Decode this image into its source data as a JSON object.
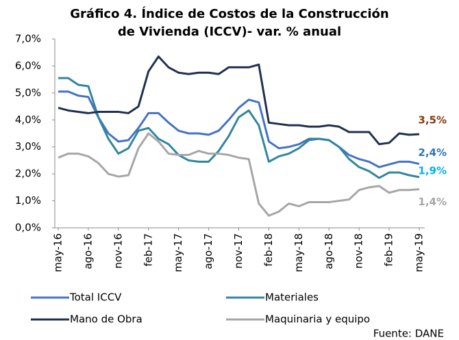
{
  "chart_data": {
    "type": "line",
    "title": "Gráfico 4. Índice de Costos de la Construcción de Vivienda (ICCV)- var. % anual",
    "source": "Fuente: DANE",
    "categories": [
      "may-16",
      null,
      null,
      "ago-16",
      null,
      null,
      "nov-16",
      null,
      null,
      "feb-17",
      null,
      null,
      "may-17",
      null,
      null,
      "ago-17",
      null,
      null,
      "nov-17",
      null,
      null,
      "feb-18",
      null,
      null,
      "may-18",
      null,
      null,
      "ago-18",
      null,
      null,
      "nov-18",
      null,
      null,
      "feb-19",
      null,
      null,
      "may-19"
    ],
    "ylim": [
      0,
      7
    ],
    "yticks": [
      {
        "value": 0,
        "label": "0,0%"
      },
      {
        "value": 1,
        "label": "1,0%"
      },
      {
        "value": 2,
        "label": "2,0%"
      },
      {
        "value": 3,
        "label": "3,0%"
      },
      {
        "value": 4,
        "label": "4,0%"
      },
      {
        "value": 5,
        "label": "5,0%"
      },
      {
        "value": 6,
        "label": "6,0%"
      },
      {
        "value": 7,
        "label": "7,0%"
      }
    ],
    "series": [
      {
        "name": "Total ICCV",
        "color": "#4472c4",
        "label_color": "#2e75b6",
        "values": [
          5.05,
          5.05,
          4.9,
          4.85,
          4.1,
          3.5,
          3.2,
          3.25,
          3.7,
          4.25,
          4.25,
          3.9,
          3.6,
          3.5,
          3.5,
          3.45,
          3.6,
          4.0,
          4.45,
          4.75,
          4.65,
          3.2,
          2.95,
          3.0,
          3.1,
          3.3,
          3.3,
          3.25,
          3.0,
          2.7,
          2.55,
          2.45,
          2.25,
          2.35,
          2.45,
          2.45,
          2.37
        ],
        "value_labels": [
          null,
          null,
          null,
          null,
          null,
          null,
          null,
          null,
          null,
          null,
          null,
          null,
          null,
          null,
          null,
          null,
          null,
          null,
          null,
          null,
          null,
          null,
          null,
          null,
          null,
          null,
          null,
          null,
          null,
          null,
          null,
          null,
          null,
          null,
          null,
          null,
          "2,4%"
        ]
      },
      {
        "name": "Materiales",
        "color": "#31859c",
        "label_color": "#00b0f0",
        "values": [
          5.55,
          5.55,
          5.3,
          5.25,
          4.1,
          3.3,
          2.75,
          2.95,
          3.6,
          3.7,
          3.3,
          3.1,
          2.7,
          2.5,
          2.45,
          2.45,
          2.85,
          3.4,
          4.1,
          4.35,
          3.8,
          2.45,
          2.65,
          2.75,
          2.95,
          3.25,
          3.3,
          3.25,
          3.0,
          2.55,
          2.25,
          2.1,
          1.85,
          2.05,
          2.05,
          1.95,
          1.88
        ],
        "value_labels": [
          null,
          null,
          null,
          null,
          null,
          null,
          null,
          null,
          null,
          null,
          null,
          null,
          null,
          null,
          null,
          null,
          null,
          null,
          null,
          null,
          null,
          null,
          null,
          null,
          null,
          null,
          null,
          null,
          null,
          null,
          null,
          null,
          null,
          null,
          null,
          null,
          "1,9%"
        ]
      },
      {
        "name": "Mano de Obra",
        "color": "#1f3050",
        "label_color": "#843c0c",
        "values": [
          4.45,
          4.35,
          4.3,
          4.25,
          4.3,
          4.3,
          4.3,
          4.25,
          4.5,
          5.8,
          6.35,
          5.95,
          5.75,
          5.7,
          5.75,
          5.75,
          5.7,
          5.95,
          5.95,
          5.95,
          6.05,
          3.9,
          3.85,
          3.8,
          3.8,
          3.75,
          3.75,
          3.8,
          3.75,
          3.55,
          3.55,
          3.55,
          3.1,
          3.15,
          3.5,
          3.45,
          3.47
        ],
        "value_labels": [
          null,
          null,
          null,
          null,
          null,
          null,
          null,
          null,
          null,
          null,
          null,
          null,
          null,
          null,
          null,
          null,
          null,
          null,
          null,
          null,
          null,
          null,
          null,
          null,
          null,
          null,
          null,
          null,
          null,
          null,
          null,
          null,
          null,
          null,
          null,
          null,
          "3,5%"
        ]
      },
      {
        "name": "Maquinaria y equipo",
        "color": "#a6a6a6",
        "label_color": "#a6a6a6",
        "values": [
          2.6,
          2.75,
          2.75,
          2.65,
          2.4,
          2.0,
          1.9,
          1.95,
          2.95,
          3.5,
          3.2,
          2.75,
          2.7,
          2.7,
          2.85,
          2.75,
          2.75,
          2.7,
          2.6,
          2.55,
          0.9,
          0.45,
          0.6,
          0.9,
          0.8,
          0.95,
          0.95,
          0.95,
          1.0,
          1.05,
          1.4,
          1.5,
          1.55,
          1.3,
          1.4,
          1.4,
          1.43
        ],
        "value_labels": [
          null,
          null,
          null,
          null,
          null,
          null,
          null,
          null,
          null,
          null,
          null,
          null,
          null,
          null,
          null,
          null,
          null,
          null,
          null,
          null,
          null,
          null,
          null,
          null,
          null,
          null,
          null,
          null,
          null,
          null,
          null,
          null,
          null,
          null,
          null,
          null,
          "1,4%"
        ]
      }
    ]
  }
}
